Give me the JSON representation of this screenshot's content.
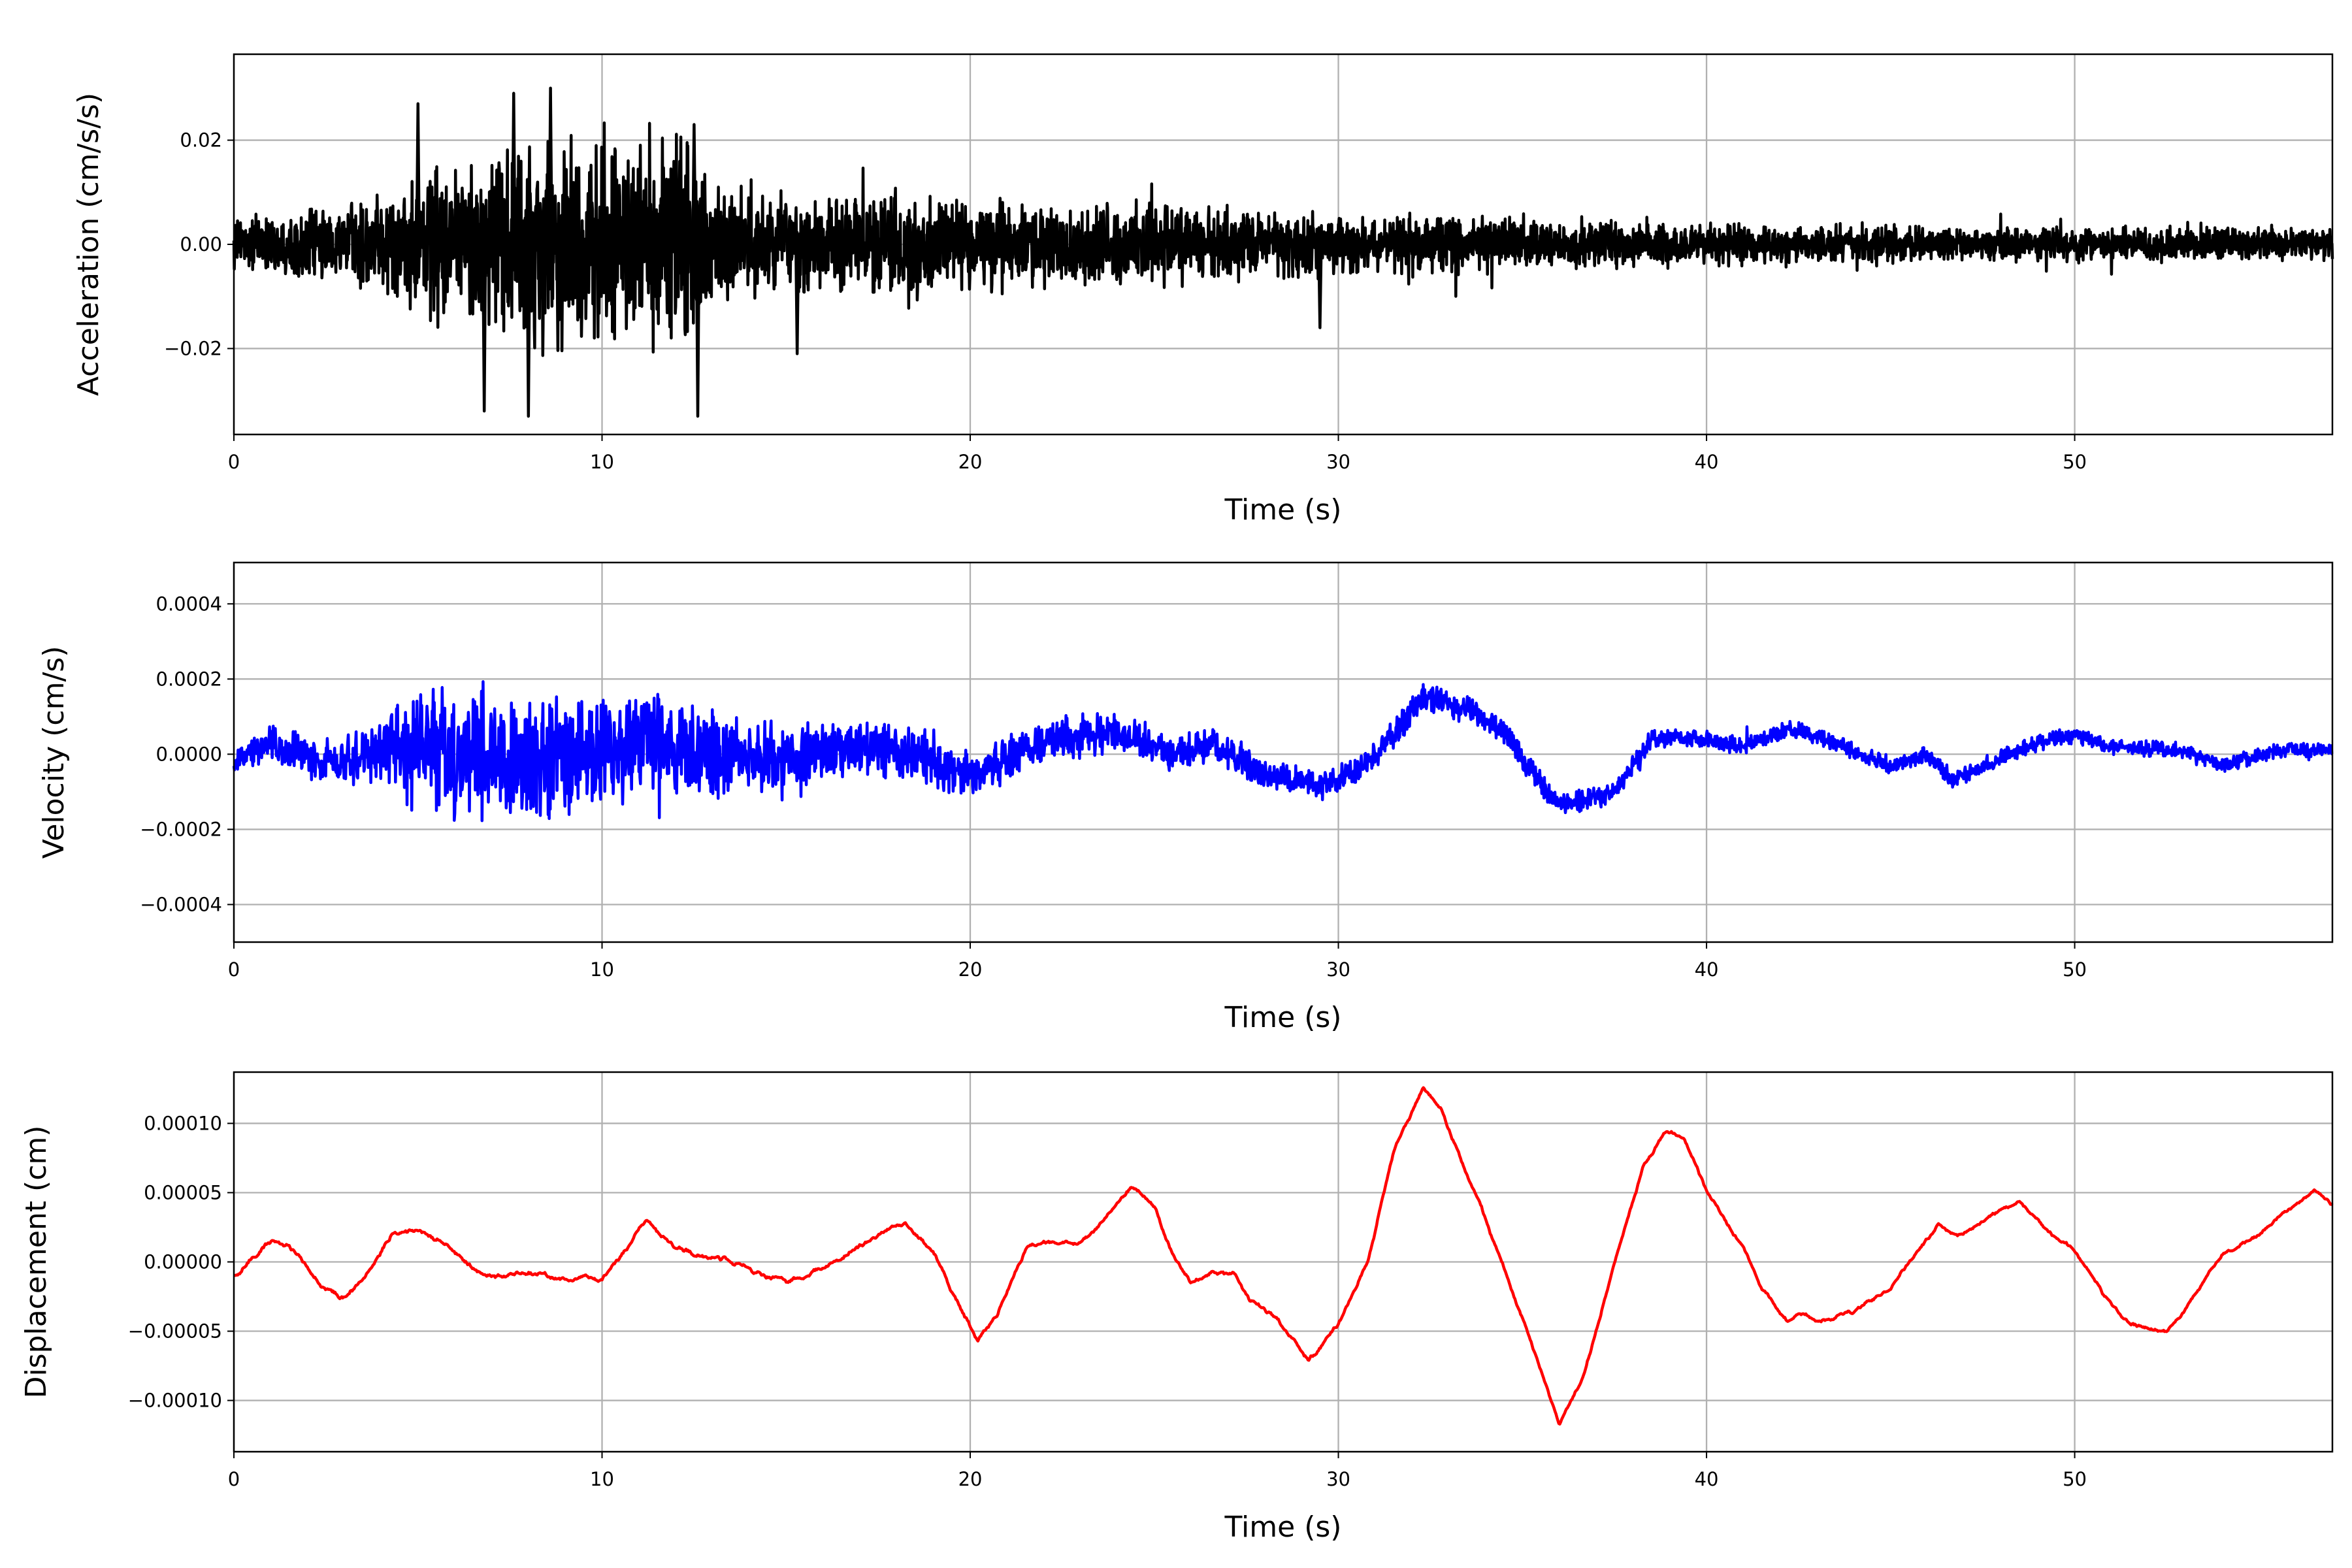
{
  "chart_data": [
    {
      "type": "line",
      "title": "",
      "xlabel": "Time (s)",
      "ylabel": "Acceleration (cm/s/s)",
      "xlim": [
        0,
        57
      ],
      "ylim": [
        -0.0365,
        0.0365
      ],
      "xticks": [
        0,
        10,
        20,
        30,
        40,
        50
      ],
      "xtick_labels": [
        "0",
        "10",
        "20",
        "30",
        "40",
        "50"
      ],
      "yticks": [
        0.02,
        0.0,
        -0.02
      ],
      "ytick_labels": [
        "0.02",
        "0.00",
        "−0.02"
      ],
      "grid": true,
      "color": "#000000",
      "series_kind": "noise",
      "envelope_t": [
        0,
        4,
        5,
        8,
        12.6,
        13,
        15,
        25,
        30,
        40,
        57
      ],
      "envelope_amp": [
        0.005,
        0.009,
        0.017,
        0.022,
        0.022,
        0.013,
        0.011,
        0.008,
        0.0065,
        0.0042,
        0.0032
      ],
      "peaks": [
        [
          5.0,
          0.027
        ],
        [
          6.8,
          -0.032
        ],
        [
          8.0,
          -0.033
        ],
        [
          8.6,
          0.03
        ],
        [
          12.6,
          -0.033
        ],
        [
          12.5,
          0.023
        ],
        [
          7.6,
          0.029
        ],
        [
          29.5,
          -0.016
        ],
        [
          15.3,
          -0.021
        ]
      ]
    },
    {
      "type": "line",
      "title": "",
      "xlabel": "Time (s)",
      "ylabel": "Velocity (cm/s)",
      "xlim": [
        0,
        57
      ],
      "ylim": [
        -0.0005,
        0.00051
      ],
      "xticks": [
        0,
        10,
        20,
        30,
        40,
        50
      ],
      "xtick_labels": [
        "0",
        "10",
        "20",
        "30",
        "40",
        "50"
      ],
      "yticks": [
        0.0004,
        0.0002,
        0.0,
        -0.0002,
        -0.0004
      ],
      "ytick_labels": [
        "0.0004",
        "0.0002",
        "0.0000",
        "−0.0002",
        "−0.0004"
      ],
      "grid": true,
      "color": "#0000ff",
      "series_kind": "trend+noise",
      "trend": [
        [
          0,
          -2e-05
        ],
        [
          1,
          3e-05
        ],
        [
          2,
          -1e-05
        ],
        [
          3,
          -3e-05
        ],
        [
          4.5,
          2e-05
        ],
        [
          6,
          0
        ],
        [
          8,
          -2e-05
        ],
        [
          10,
          0
        ],
        [
          11,
          3e-05
        ],
        [
          13,
          0
        ],
        [
          15,
          -2e-05
        ],
        [
          17,
          2e-05
        ],
        [
          18.5,
          0
        ],
        [
          20.2,
          -6e-05
        ],
        [
          21,
          -1e-05
        ],
        [
          22,
          3e-05
        ],
        [
          24,
          6e-05
        ],
        [
          25.5,
          0
        ],
        [
          26.5,
          3e-05
        ],
        [
          28,
          -5e-05
        ],
        [
          29.5,
          -8e-05
        ],
        [
          30.5,
          -5e-05
        ],
        [
          31.5,
          5e-05
        ],
        [
          32.3,
          0.00015
        ],
        [
          33.5,
          0.00012
        ],
        [
          34.5,
          6e-05
        ],
        [
          35.5,
          -8e-05
        ],
        [
          36,
          -0.00014
        ],
        [
          37.5,
          -0.0001
        ],
        [
          38.5,
          4e-05
        ],
        [
          40,
          4e-05
        ],
        [
          41,
          2e-05
        ],
        [
          42.3,
          7e-05
        ],
        [
          44,
          1e-05
        ],
        [
          45,
          -3e-05
        ],
        [
          46,
          0
        ],
        [
          46.7,
          -7e-05
        ],
        [
          48,
          -1e-05
        ],
        [
          49,
          3e-05
        ],
        [
          50,
          5e-05
        ],
        [
          51,
          2e-05
        ],
        [
          53,
          1e-05
        ],
        [
          54,
          -3e-05
        ],
        [
          55.5,
          1e-05
        ],
        [
          57,
          1e-05
        ]
      ],
      "envelope_t": [
        0,
        4,
        5,
        9,
        12.5,
        20,
        30,
        40,
        57
      ],
      "envelope_amp": [
        5e-05,
        0.0001,
        0.00022,
        0.0002,
        0.00015,
        8e-05,
        5e-05,
        3e-05,
        2.5e-05
      ]
    },
    {
      "type": "line",
      "title": "",
      "xlabel": "Time (s)",
      "ylabel": "Displacement (cm)",
      "xlim": [
        0,
        57
      ],
      "ylim": [
        -0.000137,
        0.000137
      ],
      "xticks": [
        0,
        10,
        20,
        30,
        40,
        50
      ],
      "xtick_labels": [
        "0",
        "10",
        "20",
        "30",
        "40",
        "50"
      ],
      "yticks": [
        0.0001,
        5e-05,
        0.0,
        -5e-05,
        -0.0001
      ],
      "ytick_labels": [
        "0.00010",
        "0.00005",
        "0.00000",
        "−0.00005",
        "−0.00010"
      ],
      "grid": true,
      "color": "#ff0000",
      "series_kind": "trend+noise",
      "trend": [
        [
          0,
          -1e-05
        ],
        [
          1,
          1.4e-05
        ],
        [
          1.5,
          1.3e-05
        ],
        [
          2.3,
          -1.7e-05
        ],
        [
          3,
          -2.6e-05
        ],
        [
          3.6,
          -1e-05
        ],
        [
          4.3,
          2e-05
        ],
        [
          5,
          2.3e-05
        ],
        [
          5.6,
          1.5e-05
        ],
        [
          6.5,
          -5e-06
        ],
        [
          7,
          -1.2e-05
        ],
        [
          8,
          -9e-06
        ],
        [
          9,
          -1.3e-05
        ],
        [
          10,
          -1.2e-05
        ],
        [
          10.5,
          5e-06
        ],
        [
          11.2,
          3e-05
        ],
        [
          12,
          1e-05
        ],
        [
          13,
          3e-06
        ],
        [
          14,
          -5e-06
        ],
        [
          15,
          -1.5e-05
        ],
        [
          16,
          -5e-06
        ],
        [
          17,
          1.2e-05
        ],
        [
          18.2,
          2.8e-05
        ],
        [
          19,
          5e-06
        ],
        [
          20.2,
          -5.7e-05
        ],
        [
          20.7,
          -4e-05
        ],
        [
          21.5,
          8e-06
        ],
        [
          22,
          1.4e-05
        ],
        [
          23,
          1.2e-05
        ],
        [
          23.5,
          2.5e-05
        ],
        [
          24.4,
          5.5e-05
        ],
        [
          25,
          4e-05
        ],
        [
          25.5,
          5e-06
        ],
        [
          26,
          -1.5e-05
        ],
        [
          26.6,
          -7e-06
        ],
        [
          27.2,
          -1e-05
        ],
        [
          27.6,
          -2.8e-05
        ],
        [
          28.3,
          -4e-05
        ],
        [
          29.2,
          -7.2e-05
        ],
        [
          30,
          -4.5e-05
        ],
        [
          30.8,
          0
        ],
        [
          31.5,
          8e-05
        ],
        [
          32.3,
          0.000127
        ],
        [
          32.8,
          0.00011
        ],
        [
          34,
          3e-05
        ],
        [
          35,
          -4e-05
        ],
        [
          36,
          -0.000117
        ],
        [
          36.7,
          -8e-05
        ],
        [
          37.5,
          0
        ],
        [
          38.3,
          7e-05
        ],
        [
          38.9,
          9.4e-05
        ],
        [
          39.4,
          9e-05
        ],
        [
          40,
          5e-05
        ],
        [
          41,
          1e-05
        ],
        [
          41.5,
          -2e-05
        ],
        [
          42.2,
          -4.2e-05
        ],
        [
          42.5,
          -3.7e-05
        ],
        [
          43,
          -4.2e-05
        ],
        [
          44,
          -3.5e-05
        ],
        [
          45,
          -2e-05
        ],
        [
          45.5,
          0
        ],
        [
          46.3,
          2.7e-05
        ],
        [
          46.8,
          1.8e-05
        ],
        [
          47.5,
          3e-05
        ],
        [
          48.5,
          4.3e-05
        ],
        [
          49.4,
          2e-05
        ],
        [
          50,
          8e-06
        ],
        [
          50.8,
          -2.5e-05
        ],
        [
          51.5,
          -4.5e-05
        ],
        [
          52.5,
          -5e-05
        ],
        [
          53.1,
          -3e-05
        ],
        [
          54,
          5e-06
        ],
        [
          55,
          2e-05
        ],
        [
          56.5,
          5.2e-05
        ],
        [
          57,
          4.2e-05
        ]
      ],
      "envelope_t": [
        0,
        57
      ],
      "envelope_amp": [
        2.5e-06,
        1.5e-06
      ]
    }
  ]
}
